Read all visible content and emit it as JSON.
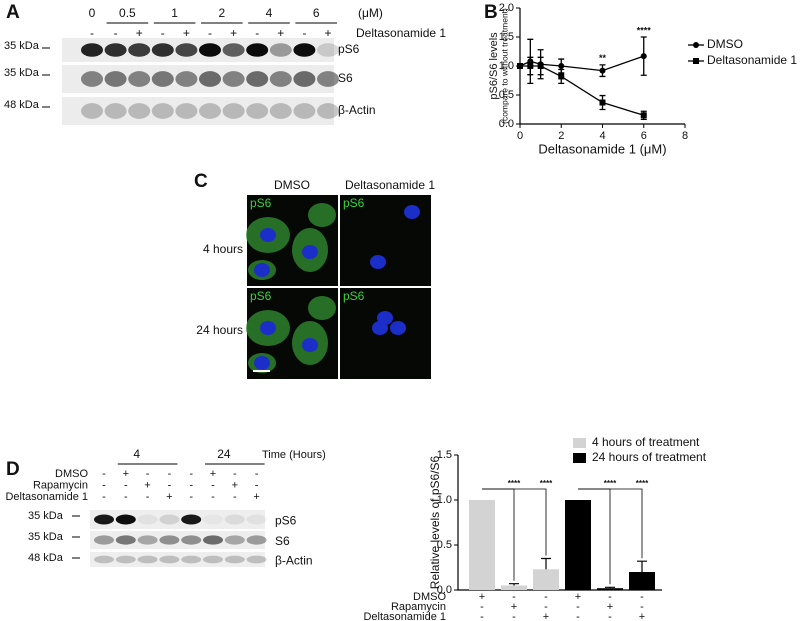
{
  "panel_labels": [
    "A",
    "B",
    "C",
    "D"
  ],
  "blot_a": {
    "concentrations": [
      "0",
      "0.5",
      "1",
      "2",
      "4",
      "6"
    ],
    "unit": "(μM)",
    "treatment": "Deltasonamide 1",
    "signs": [
      "-",
      "-",
      "+",
      "-",
      "+",
      "-",
      "+",
      "-",
      "+",
      "-",
      "+"
    ],
    "markers": [
      "35 kDa",
      "35 kDa",
      "48 kDa"
    ],
    "rows": [
      "pS6",
      "S6",
      "β-Actin"
    ]
  },
  "imaging_c": {
    "columns": [
      "DMSO",
      "Deltasonamide 1"
    ],
    "rows": [
      "4 hours",
      "24 hours"
    ],
    "stain": "pS6"
  },
  "blot_d": {
    "times": [
      "4",
      "24"
    ],
    "time_label": "Time (Hours)",
    "treatments": [
      {
        "name": "DMSO",
        "signs": [
          "-",
          "+",
          "-",
          "-",
          "-",
          "+",
          "-",
          "-"
        ]
      },
      {
        "name": "Rapamycin",
        "signs": [
          "-",
          "-",
          "+",
          "-",
          "-",
          "-",
          "+",
          "-"
        ]
      },
      {
        "name": "Deltasonamide 1",
        "signs": [
          "-",
          "-",
          "-",
          "+",
          "-",
          "-",
          "-",
          "+"
        ]
      }
    ],
    "markers": [
      "35 kDa",
      "35 kDa",
      "48 kDa"
    ],
    "rows": [
      "pS6",
      "S6",
      "β-Actin"
    ]
  },
  "chart_data": [
    {
      "type": "line",
      "ylabel": "pS6/S6 levels",
      "ylabel_note": "(compare to without treatment)",
      "xlabel": "Deltasonamide 1 (μM)",
      "x": [
        0,
        0.5,
        1,
        2,
        4,
        6
      ],
      "series": [
        {
          "name": "DMSO",
          "color": "#000000",
          "marker": "circle",
          "values": [
            1.0,
            1.08,
            1.03,
            1.0,
            0.92,
            1.17
          ],
          "errors": [
            0.04,
            0.38,
            0.25,
            0.12,
            0.1,
            0.33
          ]
        },
        {
          "name": "Deltasonamide 1",
          "color": "#000000",
          "marker": "square",
          "values": [
            1.0,
            1.0,
            1.0,
            0.82,
            0.37,
            0.15
          ],
          "errors": [
            0.04,
            0.15,
            0.15,
            0.12,
            0.12,
            0.07
          ]
        }
      ],
      "annotations": [
        {
          "text": "**",
          "x": 4
        },
        {
          "text": "****",
          "x": 6
        }
      ],
      "xlim": [
        0,
        8
      ],
      "xticks": [
        0,
        2,
        4,
        6,
        8
      ],
      "ylim": [
        0,
        2.0
      ],
      "yticks": [
        {
          "value": 0,
          "label": "0.0"
        },
        {
          "value": 0.5,
          "label": "0.5"
        },
        {
          "value": 1.0,
          "label": "1.0"
        },
        {
          "value": 1.5,
          "label": "1.5"
        },
        {
          "value": 2.0,
          "label": "2.0"
        }
      ],
      "legend": "right"
    },
    {
      "type": "bar",
      "ylabel": "Relative levels of pS6/S6",
      "series": [
        {
          "name": "4 hours of treatment",
          "color": "#d3d3d3",
          "values": [
            1.0,
            0.05,
            0.23
          ],
          "errors": [
            0,
            0.02,
            0.12
          ]
        },
        {
          "name": "24 hours of treatment",
          "color": "#000000",
          "values": [
            1.0,
            0.02,
            0.2
          ],
          "errors": [
            0,
            0.01,
            0.12
          ]
        }
      ],
      "treatments": [
        {
          "name": "DMSO",
          "signs": [
            "+",
            "-",
            "-",
            "+",
            "-",
            "-"
          ]
        },
        {
          "name": "Rapamycin",
          "signs": [
            "-",
            "+",
            "-",
            "-",
            "+",
            "-"
          ]
        },
        {
          "name": "Deltasonamide 1",
          "signs": [
            "-",
            "-",
            "+",
            "-",
            "-",
            "+"
          ]
        }
      ],
      "annotations": [
        "****",
        "****",
        "****",
        "****"
      ],
      "ylim": [
        0,
        1.5
      ],
      "yticks": [
        {
          "value": 0,
          "label": "0.0"
        },
        {
          "value": 0.5,
          "label": "0.5"
        },
        {
          "value": 1.0,
          "label": "1.0"
        },
        {
          "value": 1.5,
          "label": "1.5"
        }
      ],
      "legend": "top"
    }
  ]
}
